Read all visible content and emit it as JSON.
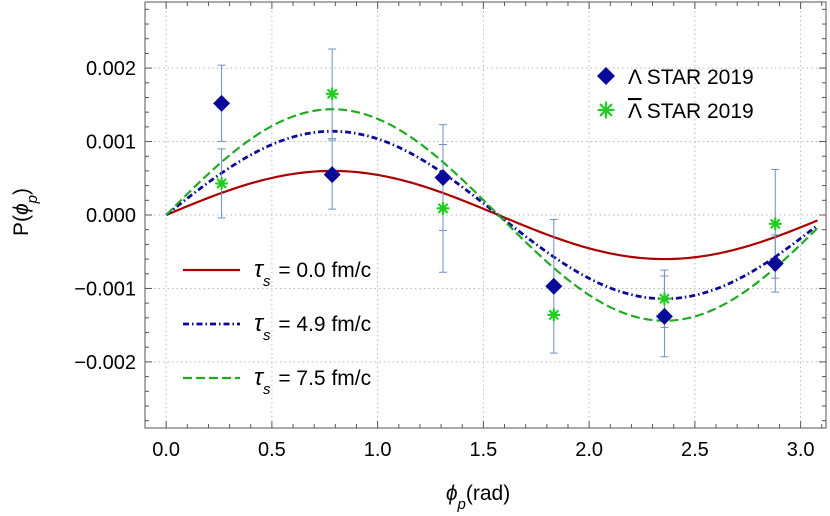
{
  "chart_data": {
    "type": "line",
    "title": "",
    "xlabel": {
      "symbol": "ϕ",
      "sub": "p",
      "suffix": "(rad)"
    },
    "ylabel": {
      "prefix": "P(",
      "symbol": "ϕ",
      "sub": "p",
      "suffix": ")"
    },
    "xlim": [
      -0.1,
      3.12
    ],
    "ylim": [
      -0.0029,
      0.0029
    ],
    "xticks": [
      0.0,
      0.5,
      1.0,
      1.5,
      2.0,
      2.5,
      3.0
    ],
    "xtick_labels": [
      "0.0",
      "0.5",
      "1.0",
      "1.5",
      "2.0",
      "2.5",
      "3.0"
    ],
    "yticks": [
      -0.002,
      -0.001,
      0.0,
      0.001,
      0.002
    ],
    "ytick_labels": [
      "−0.002",
      "−0.001",
      "0.000",
      "0.001",
      "0.002"
    ],
    "grid": true,
    "curves": [
      {
        "tau": "τ",
        "sub": "s",
        "text": " = 0.0 fm/c",
        "color": "#aa0000",
        "style": "solid",
        "amplitude": 0.0006,
        "phase_shift": 0.0
      },
      {
        "tau": "τ",
        "sub": "s",
        "text": " = 4.9 fm/c",
        "color": "#0a0a9a",
        "style": "dashdot",
        "amplitude": 0.00114,
        "phase_shift": 0.0
      },
      {
        "tau": "τ",
        "sub": "s",
        "text": " = 7.5 fm/c",
        "color": "#22aa22",
        "style": "dashed",
        "amplitude": 0.00144,
        "phase_shift": 0.0
      }
    ],
    "curve_x_range": [
      0.0,
      3.08
    ],
    "points": [
      {
        "name": "Λ STAR 2019",
        "symbol": "Λ",
        "overline": false,
        "suffix": " STAR 2019",
        "marker": "diamond",
        "color": "#0a0a9a",
        "x": [
          0.262,
          0.785,
          1.309,
          1.833,
          2.356,
          2.88
        ],
        "y": [
          0.00152,
          0.00055,
          0.00051,
          -0.00097,
          -0.00138,
          -0.00066
        ],
        "err": [
          0.00052,
          0.00047,
          0.00072,
          0.00091,
          0.00055,
          0.00039
        ]
      },
      {
        "name": "Λ̄ STAR 2019",
        "symbol": "Λ",
        "overline": true,
        "suffix": " STAR 2019",
        "marker": "star",
        "color": "#22cc22",
        "x": [
          0.262,
          0.785,
          1.309,
          1.833,
          2.356,
          2.88
        ],
        "y": [
          0.00043,
          0.00165,
          9e-05,
          -0.00136,
          -0.00114,
          -0.00012
        ],
        "err": [
          0.00047,
          0.00061,
          0.00087,
          0.0,
          0.00039,
          0.00074
        ]
      }
    ],
    "legend_points_position": "top-right",
    "legend_curves_position": "bottom-left"
  }
}
